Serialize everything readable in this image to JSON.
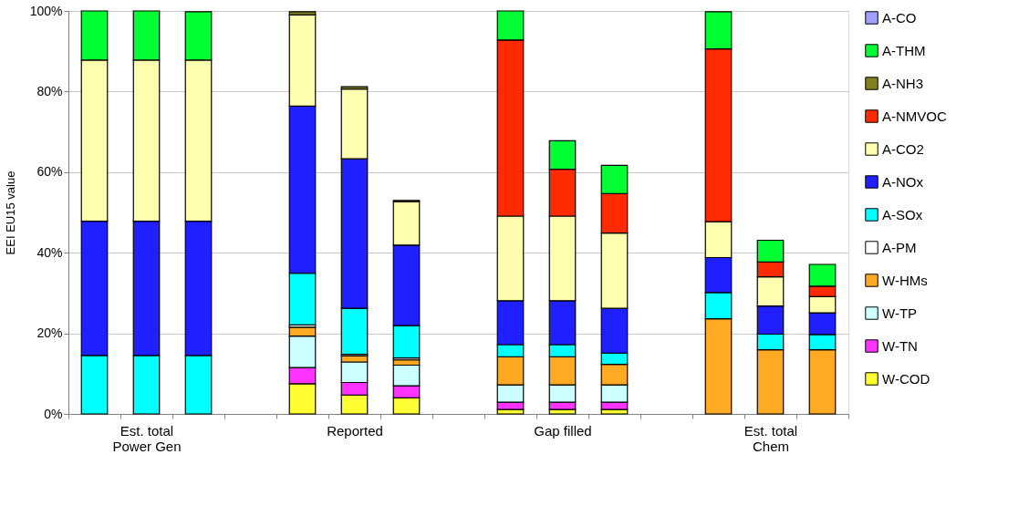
{
  "chart_data": {
    "type": "bar",
    "stacked": true,
    "ylabel": "EEI EU15 value",
    "categories": [
      null,
      "Est. total\nPower Gen",
      null,
      null,
      null,
      "Reported",
      null,
      null,
      null,
      "Gap filled",
      null,
      null,
      null,
      "Est. total\nChem",
      null
    ],
    "ylim": [
      0,
      100
    ],
    "yticks": [
      {
        "value": 0,
        "label": "0%"
      },
      {
        "value": 20,
        "label": "20%"
      },
      {
        "value": 40,
        "label": "40%"
      },
      {
        "value": 60,
        "label": "60%"
      },
      {
        "value": 80,
        "label": "80%"
      },
      {
        "value": 100,
        "label": "100%"
      }
    ],
    "grid": "y",
    "legend": "right",
    "series": [
      {
        "name": "W-COD",
        "color": "#ffff33",
        "values": [
          null,
          null,
          null,
          null,
          7.5,
          4.7,
          4.0,
          null,
          1.1,
          1.1,
          1.1,
          null,
          null,
          null,
          null
        ]
      },
      {
        "name": "W-TN",
        "color": "#ff33ff",
        "values": [
          null,
          null,
          null,
          null,
          4.0,
          3.1,
          3.0,
          null,
          1.8,
          1.8,
          1.8,
          null,
          null,
          null,
          null
        ]
      },
      {
        "name": "W-TP",
        "color": "#ccffff",
        "values": [
          null,
          null,
          null,
          null,
          7.8,
          5.1,
          5.1,
          null,
          4.3,
          4.3,
          4.3,
          null,
          null,
          null,
          null
        ]
      },
      {
        "name": "W-HMs",
        "color": "#ffaa22",
        "values": [
          null,
          null,
          null,
          null,
          2.2,
          1.5,
          1.3,
          null,
          7.0,
          7.0,
          5.1,
          null,
          23.6,
          15.9,
          15.9
        ]
      },
      {
        "name": "A-PM",
        "color": "#ffffff",
        "values": [
          null,
          null,
          null,
          null,
          0.6,
          0.4,
          0.5,
          null,
          null,
          null,
          null,
          null,
          null,
          null,
          null
        ]
      },
      {
        "name": "A-SOx",
        "color": "#00ffff",
        "values": [
          14.5,
          14.5,
          14.5,
          null,
          12.8,
          11.4,
          8.0,
          null,
          3.0,
          3.0,
          2.8,
          null,
          6.5,
          3.9,
          3.8
        ]
      },
      {
        "name": "A-NOx",
        "color": "#1f1fff",
        "values": [
          33.3,
          33.3,
          33.3,
          null,
          41.5,
          37.1,
          20.0,
          null,
          10.9,
          10.9,
          11.1,
          null,
          8.7,
          7.0,
          5.4
        ]
      },
      {
        "name": "A-CO2",
        "color": "#ffffb0",
        "values": [
          40.0,
          40.0,
          40.0,
          null,
          22.6,
          17.3,
          10.8,
          null,
          21.0,
          21.0,
          18.7,
          null,
          8.9,
          7.2,
          4.0
        ]
      },
      {
        "name": "A-NMVOC",
        "color": "#ff2a00",
        "values": [
          null,
          null,
          null,
          null,
          null,
          null,
          null,
          null,
          43.7,
          11.6,
          9.8,
          null,
          42.9,
          3.7,
          2.6
        ]
      },
      {
        "name": "A-NH3",
        "color": "#808020",
        "values": [
          null,
          null,
          null,
          null,
          0.8,
          0.6,
          0.3,
          null,
          null,
          null,
          null,
          null,
          null,
          null,
          null
        ]
      },
      {
        "name": "A-THM",
        "color": "#00ff33",
        "values": [
          12.2,
          12.2,
          12.0,
          null,
          null,
          null,
          null,
          null,
          7.2,
          7.1,
          7.0,
          null,
          9.2,
          5.4,
          5.4
        ]
      },
      {
        "name": "A-CO",
        "color": "#a0a0ff",
        "values": [
          null,
          null,
          null,
          null,
          null,
          null,
          null,
          null,
          null,
          null,
          null,
          null,
          null,
          null,
          null
        ]
      }
    ]
  }
}
